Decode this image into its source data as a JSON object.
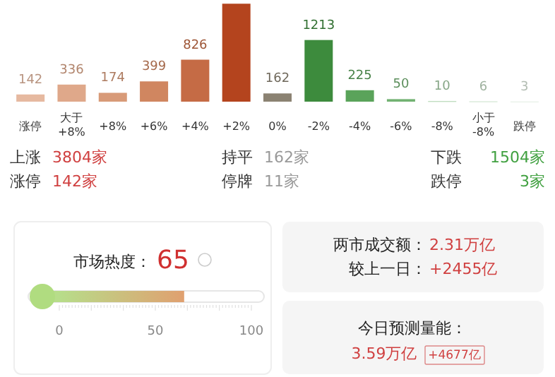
{
  "chart_data": [
    {
      "type": "bar",
      "categories": [
        "涨停",
        "大于 +8%",
        "+8%",
        "+6%",
        "+4%",
        "+2%",
        "0%",
        "-2%",
        "-4%",
        "-6%",
        "-8%",
        "小于 -8%",
        "跌停"
      ],
      "values": [
        142,
        336,
        174,
        399,
        826,
        1927,
        162,
        1213,
        225,
        50,
        10,
        6,
        3
      ],
      "value_labels": [
        "142",
        "336",
        "174",
        "399",
        "826",
        null,
        "162",
        "1213",
        "225",
        "50",
        "10",
        "6",
        "3"
      ],
      "colors": [
        "#e6b9a0",
        "#dfa88a",
        "#d89a78",
        "#d08660",
        "#c56b45",
        "#b4441e",
        "#8b8272",
        "#3d8b3d",
        "#5aa35a",
        "#72b272",
        "#a8d0a8",
        "#c8e0c8",
        "#e0ece0"
      ],
      "ylim": [
        0,
        2000
      ],
      "annotations": [
        "上涨",
        "3804家",
        "涨停",
        "142家",
        "持平",
        "162家",
        "停牌",
        "11家",
        "下跌",
        "1504家",
        "跌停",
        "3家"
      ]
    },
    {
      "type": "other",
      "title": "市场热度：",
      "values": [
        65
      ],
      "data_labels": true,
      "annotations": [
        "0",
        "50",
        "100"
      ]
    },
    {
      "type": "other",
      "annotations": [
        "两市成交额：",
        "2.31万亿",
        "较上一日：",
        "+2455亿",
        "今日预测量能：",
        "3.59万亿",
        "+4677亿"
      ]
    }
  ]
}
